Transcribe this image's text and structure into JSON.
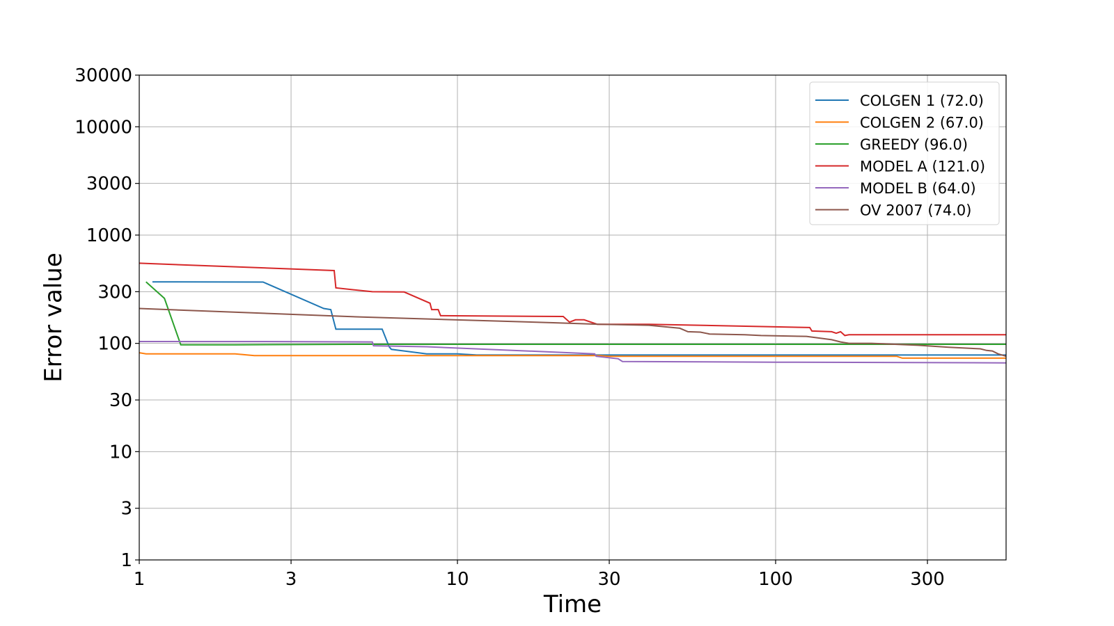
{
  "chart_data": {
    "type": "line",
    "title": "",
    "xlabel": "Time",
    "ylabel": "Error value",
    "xscale": "log",
    "yscale": "log",
    "xlim": [
      1,
      530
    ],
    "ylim": [
      1,
      30000
    ],
    "xticks": [
      {
        "value": 1,
        "label": "1"
      },
      {
        "value": 3,
        "label": "3"
      },
      {
        "value": 10,
        "label": "10"
      },
      {
        "value": 30,
        "label": "30"
      },
      {
        "value": 100,
        "label": "100"
      },
      {
        "value": 300,
        "label": "300"
      }
    ],
    "yticks": [
      {
        "value": 1,
        "label": "1"
      },
      {
        "value": 3,
        "label": "3"
      },
      {
        "value": 10,
        "label": "10"
      },
      {
        "value": 30,
        "label": "30"
      },
      {
        "value": 100,
        "label": "100"
      },
      {
        "value": 300,
        "label": "300"
      },
      {
        "value": 1000,
        "label": "1000"
      },
      {
        "value": 3000,
        "label": "3000"
      },
      {
        "value": 10000,
        "label": "10000"
      },
      {
        "value": 30000,
        "label": "30000"
      }
    ],
    "grid": true,
    "legend_position": "top-right",
    "series": [
      {
        "name": "COLGEN 1 (72.0)",
        "color": "#1f77b4",
        "points": [
          [
            1.1,
            370
          ],
          [
            2.45,
            368
          ],
          [
            3.8,
            210
          ],
          [
            4.0,
            205
          ],
          [
            4.15,
            135
          ],
          [
            5.8,
            135
          ],
          [
            6.1,
            93
          ],
          [
            6.2,
            88
          ],
          [
            8.0,
            80
          ],
          [
            10.0,
            80
          ],
          [
            11.5,
            78
          ],
          [
            30,
            78
          ],
          [
            530,
            78
          ]
        ]
      },
      {
        "name": "COLGEN 2 (67.0)",
        "color": "#ff7f0e",
        "points": [
          [
            1.0,
            82
          ],
          [
            1.05,
            80
          ],
          [
            1.2,
            80
          ],
          [
            2.0,
            80
          ],
          [
            2.3,
            77
          ],
          [
            3.0,
            77
          ],
          [
            10,
            77
          ],
          [
            28,
            77
          ],
          [
            30,
            76
          ],
          [
            100,
            76
          ],
          [
            240,
            76
          ],
          [
            250,
            73
          ],
          [
            530,
            73
          ]
        ]
      },
      {
        "name": "GREEDY (96.0)",
        "color": "#2ca02c",
        "points": [
          [
            1.05,
            370
          ],
          [
            1.2,
            260
          ],
          [
            1.35,
            97
          ],
          [
            2,
            97
          ],
          [
            5,
            98
          ],
          [
            10,
            98
          ],
          [
            100,
            98
          ],
          [
            530,
            98
          ]
        ]
      },
      {
        "name": "MODEL A (121.0)",
        "color": "#d62728",
        "points": [
          [
            1.0,
            550
          ],
          [
            4.1,
            470
          ],
          [
            4.15,
            325
          ],
          [
            5.4,
            300
          ],
          [
            6.8,
            298
          ],
          [
            8.2,
            235
          ],
          [
            8.3,
            205
          ],
          [
            8.7,
            205
          ],
          [
            8.85,
            180
          ],
          [
            21.5,
            177
          ],
          [
            22.5,
            157
          ],
          [
            23.5,
            165
          ],
          [
            25,
            165
          ],
          [
            27.5,
            150
          ],
          [
            40,
            150
          ],
          [
            128,
            140
          ],
          [
            130,
            130
          ],
          [
            150,
            128
          ],
          [
            155,
            124
          ],
          [
            160,
            128
          ],
          [
            165,
            118
          ],
          [
            170,
            120
          ],
          [
            530,
            120
          ]
        ]
      },
      {
        "name": "MODEL B (64.0)",
        "color": "#9467bd",
        "points": [
          [
            1.0,
            104
          ],
          [
            2.5,
            104
          ],
          [
            5.4,
            103
          ],
          [
            5.45,
            95
          ],
          [
            8.0,
            93
          ],
          [
            27.0,
            80
          ],
          [
            27.3,
            76
          ],
          [
            32,
            72
          ],
          [
            33,
            68
          ],
          [
            100,
            67
          ],
          [
            530,
            66
          ]
        ]
      },
      {
        "name": "OV 2007 (74.0)",
        "color": "#8c564b",
        "points": [
          [
            1.0,
            210
          ],
          [
            5,
            175
          ],
          [
            20,
            155
          ],
          [
            28,
            150
          ],
          [
            40,
            147
          ],
          [
            50,
            138
          ],
          [
            53,
            128
          ],
          [
            58,
            127
          ],
          [
            62,
            122
          ],
          [
            80,
            120
          ],
          [
            90,
            118
          ],
          [
            125,
            116
          ],
          [
            150,
            108
          ],
          [
            160,
            103
          ],
          [
            170,
            100
          ],
          [
            200,
            100
          ],
          [
            280,
            96
          ],
          [
            350,
            92
          ],
          [
            440,
            89
          ],
          [
            460,
            86
          ],
          [
            480,
            85
          ],
          [
            500,
            80
          ],
          [
            530,
            76
          ]
        ]
      }
    ]
  }
}
